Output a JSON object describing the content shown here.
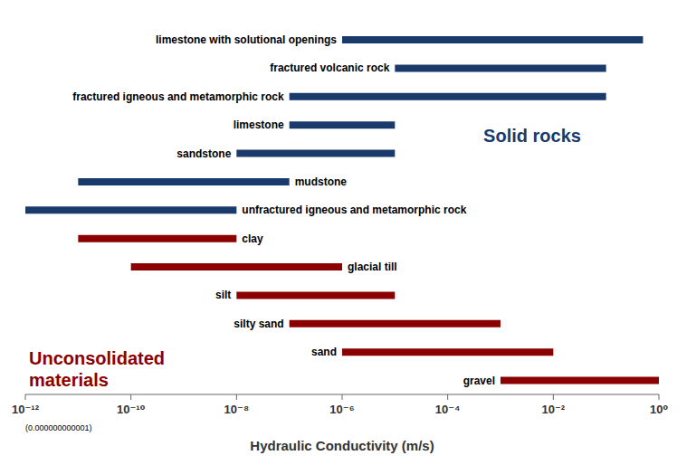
{
  "chart_data": {
    "type": "bar",
    "orientation": "horizontal",
    "log": "x",
    "grid": false,
    "xlabel": "Hydraulic Conductivity (m/s)",
    "categories": [
      "limestone with solutional openings",
      "fractured volcanic rock",
      "fractured igneous and metamorphic rock",
      "limestone",
      "sandstone",
      "mudstone",
      "unfractured igneous and metamorphic rock",
      "clay",
      "glacial till",
      "silt",
      "silty sand",
      "sand",
      "gravel"
    ],
    "values": [
      [
        1e-06,
        0.5
      ],
      [
        1e-05,
        0.1
      ],
      [
        1e-07,
        0.1
      ],
      [
        1e-07,
        1e-05
      ],
      [
        1e-08,
        1e-05
      ],
      [
        1e-11,
        1e-07
      ],
      [
        1e-12,
        1e-08
      ],
      [
        1e-11,
        1e-08
      ],
      [
        1e-10,
        1e-06
      ],
      [
        1e-08,
        1e-05
      ],
      [
        1e-07,
        0.001
      ],
      [
        1e-06,
        0.01
      ],
      [
        0.001,
        1.0
      ]
    ],
    "colors": [
      "#1a3a6b",
      "#1a3a6b",
      "#1a3a6b",
      "#1a3a6b",
      "#1a3a6b",
      "#1a3a6b",
      "#1a3a6b",
      "#8b0000",
      "#8b0000",
      "#8b0000",
      "#8b0000",
      "#8b0000",
      "#8b0000"
    ],
    "xlim": [
      1e-12,
      1
    ],
    "xticks": [
      {
        "value": 1e-12,
        "label": "10⁻¹²"
      },
      {
        "value": 1e-10,
        "label": "10⁻¹⁰"
      },
      {
        "value": 1e-08,
        "label": "10⁻⁸"
      },
      {
        "value": 1e-06,
        "label": "10⁻⁶"
      },
      {
        "value": 0.0001,
        "label": "10⁻⁴"
      },
      {
        "value": 0.01,
        "label": "10⁻²"
      },
      {
        "value": 1,
        "label": "10⁰"
      }
    ],
    "annotations": [
      {
        "text": "Solid rocks",
        "color": "#1a3a6b"
      },
      {
        "text": "Unconsolidated\nmaterials",
        "color": "#8b0000"
      },
      {
        "text": "(0.000000000001)",
        "color": "#000000"
      }
    ]
  }
}
